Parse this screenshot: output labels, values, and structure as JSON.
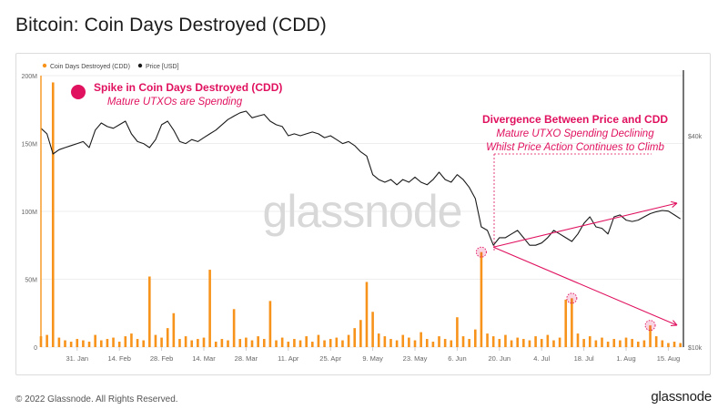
{
  "page": {
    "title": "Bitcoin: Coin Days Destroyed (CDD)",
    "copyright": "© 2022 Glassnode. All Rights Reserved.",
    "brand": "glassnode",
    "watermark": "glassnode"
  },
  "colors": {
    "cdd_bar": "#f7931a",
    "price_line": "#1a1a1a",
    "annotation": "#e0115f",
    "grid": "#eeeeee",
    "axis_text": "#666666"
  },
  "annotations": {
    "spike_title": "Spike in Coin Days Destroyed (CDD)",
    "spike_subtitle": "Mature UTXOs are Spending",
    "divergence_title": "Divergence Between Price and CDD",
    "divergence_line1": "Mature UTXO Spending Declining",
    "divergence_line2": "Whilst Price Action Continues to Climb"
  },
  "chart_data": {
    "type": "bar+line",
    "legend": {
      "placement": "top-left"
    },
    "grid": true,
    "x_ticks": [
      "31. Jan",
      "14. Feb",
      "28. Feb",
      "14. Mar",
      "28. Mar",
      "11. Apr",
      "25. Apr",
      "9. May",
      "23. May",
      "6. Jun",
      "20. Jun",
      "4. Jul",
      "18. Jul",
      "1. Aug",
      "15. Aug"
    ],
    "x_range": [
      "2022-01-19",
      "2022-08-20"
    ],
    "left_axis": {
      "ticks": [
        "0",
        "50M",
        "100M",
        "150M",
        "200M"
      ],
      "range": [
        0,
        200000000
      ]
    },
    "right_axis": {
      "ticks": [
        "$10k",
        "$40k"
      ],
      "scale": "log",
      "range": [
        10000,
        40000
      ]
    },
    "series": [
      {
        "name": "Coin Days Destroyed (CDD)",
        "type": "bar",
        "x": [
          "2022-01-19",
          "2022-01-21",
          "2022-01-23",
          "2022-01-25",
          "2022-01-27",
          "2022-01-29",
          "2022-01-31",
          "2022-02-02",
          "2022-02-04",
          "2022-02-06",
          "2022-02-08",
          "2022-02-10",
          "2022-02-12",
          "2022-02-14",
          "2022-02-16",
          "2022-02-18",
          "2022-02-20",
          "2022-02-22",
          "2022-02-24",
          "2022-02-26",
          "2022-02-28",
          "2022-03-02",
          "2022-03-04",
          "2022-03-06",
          "2022-03-08",
          "2022-03-10",
          "2022-03-12",
          "2022-03-14",
          "2022-03-16",
          "2022-03-18",
          "2022-03-20",
          "2022-03-22",
          "2022-03-24",
          "2022-03-26",
          "2022-03-28",
          "2022-03-30",
          "2022-04-01",
          "2022-04-03",
          "2022-04-05",
          "2022-04-07",
          "2022-04-09",
          "2022-04-11",
          "2022-04-13",
          "2022-04-15",
          "2022-04-17",
          "2022-04-19",
          "2022-04-21",
          "2022-04-23",
          "2022-04-25",
          "2022-04-27",
          "2022-04-29",
          "2022-05-01",
          "2022-05-03",
          "2022-05-05",
          "2022-05-07",
          "2022-05-09",
          "2022-05-11",
          "2022-05-13",
          "2022-05-15",
          "2022-05-17",
          "2022-05-19",
          "2022-05-21",
          "2022-05-23",
          "2022-05-25",
          "2022-05-27",
          "2022-05-29",
          "2022-05-31",
          "2022-06-02",
          "2022-06-04",
          "2022-06-06",
          "2022-06-08",
          "2022-06-10",
          "2022-06-12",
          "2022-06-14",
          "2022-06-16",
          "2022-06-18",
          "2022-06-20",
          "2022-06-22",
          "2022-06-24",
          "2022-06-26",
          "2022-06-28",
          "2022-06-30",
          "2022-07-02",
          "2022-07-04",
          "2022-07-06",
          "2022-07-08",
          "2022-07-10",
          "2022-07-12",
          "2022-07-14",
          "2022-07-16",
          "2022-07-18",
          "2022-07-20",
          "2022-07-22",
          "2022-07-24",
          "2022-07-26",
          "2022-07-28",
          "2022-07-30",
          "2022-08-01",
          "2022-08-03",
          "2022-08-05",
          "2022-08-07",
          "2022-08-09",
          "2022-08-11",
          "2022-08-13",
          "2022-08-15",
          "2022-08-17",
          "2022-08-19"
        ],
        "values": [
          8000000,
          9000000,
          195000000,
          7000000,
          5000000,
          4000000,
          6000000,
          5000000,
          4000000,
          9000000,
          5000000,
          6000000,
          7000000,
          4000000,
          8000000,
          10000000,
          6000000,
          5000000,
          52000000,
          9000000,
          7000000,
          14000000,
          25000000,
          6000000,
          8000000,
          5000000,
          6000000,
          7000000,
          57000000,
          4000000,
          6000000,
          5000000,
          28000000,
          6000000,
          7000000,
          5000000,
          8000000,
          6000000,
          34000000,
          5000000,
          7000000,
          4000000,
          6000000,
          5000000,
          8000000,
          4000000,
          9000000,
          5000000,
          6000000,
          7000000,
          5000000,
          9000000,
          14000000,
          20000000,
          48000000,
          26000000,
          10000000,
          8000000,
          6000000,
          5000000,
          9000000,
          7000000,
          5000000,
          11000000,
          6000000,
          4000000,
          8000000,
          6000000,
          5000000,
          22000000,
          8000000,
          6000000,
          13000000,
          70000000,
          10000000,
          8000000,
          6000000,
          9000000,
          5000000,
          7000000,
          6000000,
          5000000,
          8000000,
          6000000,
          9000000,
          5000000,
          7000000,
          35000000,
          36000000,
          10000000,
          6000000,
          8000000,
          5000000,
          7000000,
          4000000,
          6000000,
          5000000,
          7000000,
          6000000,
          4000000,
          5000000,
          16000000,
          8000000,
          5000000,
          3000000,
          4000000,
          3000000
        ]
      },
      {
        "name": "Price [USD]",
        "type": "line",
        "x": [
          "2022-01-19",
          "2022-01-21",
          "2022-01-23",
          "2022-01-25",
          "2022-01-27",
          "2022-01-29",
          "2022-01-31",
          "2022-02-02",
          "2022-02-04",
          "2022-02-06",
          "2022-02-08",
          "2022-02-10",
          "2022-02-12",
          "2022-02-14",
          "2022-02-16",
          "2022-02-18",
          "2022-02-20",
          "2022-02-22",
          "2022-02-24",
          "2022-02-26",
          "2022-02-28",
          "2022-03-02",
          "2022-03-04",
          "2022-03-06",
          "2022-03-08",
          "2022-03-10",
          "2022-03-12",
          "2022-03-14",
          "2022-03-16",
          "2022-03-18",
          "2022-03-20",
          "2022-03-22",
          "2022-03-24",
          "2022-03-26",
          "2022-03-28",
          "2022-03-30",
          "2022-04-01",
          "2022-04-03",
          "2022-04-05",
          "2022-04-07",
          "2022-04-09",
          "2022-04-11",
          "2022-04-13",
          "2022-04-15",
          "2022-04-17",
          "2022-04-19",
          "2022-04-21",
          "2022-04-23",
          "2022-04-25",
          "2022-04-27",
          "2022-04-29",
          "2022-05-01",
          "2022-05-03",
          "2022-05-05",
          "2022-05-07",
          "2022-05-09",
          "2022-05-11",
          "2022-05-13",
          "2022-05-15",
          "2022-05-17",
          "2022-05-19",
          "2022-05-21",
          "2022-05-23",
          "2022-05-25",
          "2022-05-27",
          "2022-05-29",
          "2022-05-31",
          "2022-06-02",
          "2022-06-04",
          "2022-06-06",
          "2022-06-08",
          "2022-06-10",
          "2022-06-12",
          "2022-06-14",
          "2022-06-16",
          "2022-06-18",
          "2022-06-20",
          "2022-06-22",
          "2022-06-24",
          "2022-06-26",
          "2022-06-28",
          "2022-06-30",
          "2022-07-02",
          "2022-07-04",
          "2022-07-06",
          "2022-07-08",
          "2022-07-10",
          "2022-07-12",
          "2022-07-14",
          "2022-07-16",
          "2022-07-18",
          "2022-07-20",
          "2022-07-22",
          "2022-07-24",
          "2022-07-26",
          "2022-07-28",
          "2022-07-30",
          "2022-08-01",
          "2022-08-03",
          "2022-08-05",
          "2022-08-07",
          "2022-08-09",
          "2022-08-11",
          "2022-08-13",
          "2022-08-15",
          "2022-08-17",
          "2022-08-19"
        ],
        "values": [
          42000,
          40500,
          35500,
          36500,
          37000,
          37500,
          38000,
          38500,
          37000,
          41500,
          43500,
          42500,
          42000,
          43000,
          44000,
          40500,
          38500,
          38000,
          37000,
          39000,
          43000,
          44000,
          41500,
          38500,
          38000,
          39000,
          38500,
          39500,
          40500,
          41500,
          43000,
          44500,
          45500,
          46500,
          47000,
          45000,
          45500,
          46000,
          44000,
          43000,
          42500,
          40000,
          40500,
          40000,
          40500,
          41000,
          40500,
          39500,
          40000,
          39000,
          38000,
          38500,
          37500,
          36000,
          35000,
          31000,
          30000,
          29500,
          30000,
          29000,
          30000,
          29500,
          30500,
          29500,
          29000,
          30000,
          31500,
          30000,
          29500,
          31000,
          30000,
          28500,
          26500,
          22000,
          21500,
          19500,
          20500,
          20500,
          21000,
          21500,
          20500,
          19500,
          19500,
          19800,
          20500,
          21500,
          21000,
          20500,
          20000,
          21000,
          22500,
          23500,
          22000,
          21800,
          21000,
          23500,
          23800,
          23000,
          22800,
          23000,
          23500,
          24000,
          24300,
          24500,
          24400,
          23800,
          23200
        ]
      }
    ]
  }
}
